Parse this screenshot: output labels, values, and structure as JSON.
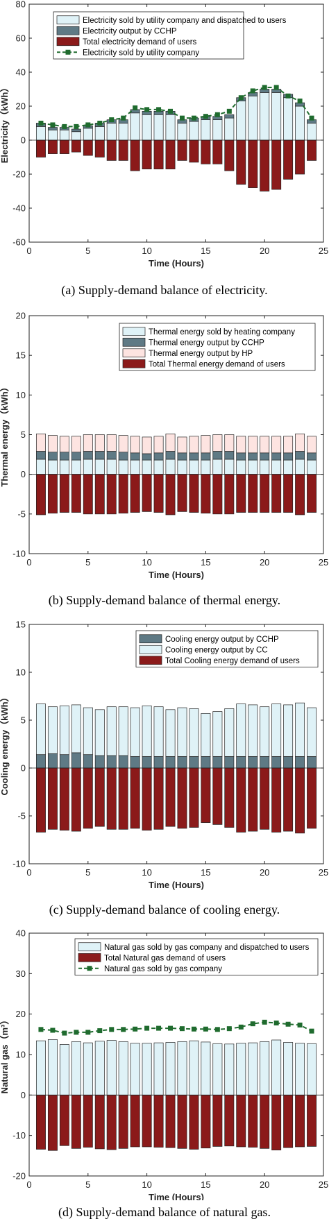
{
  "figures": [
    {
      "caption": "(a) Supply-demand balance of electricity.",
      "chart_data": {
        "type": "bar",
        "xlabel": "Time (Hours)",
        "ylabel": "Electricity（kWh）",
        "xlim": [
          0,
          25
        ],
        "ylim": [
          -60,
          80
        ],
        "xticks": [
          "0",
          "5",
          "10",
          "15",
          "20",
          "25"
        ],
        "yticks": [
          "80",
          "60",
          "40",
          "20",
          "0",
          "-20",
          "-40",
          "-60"
        ],
        "grid": false,
        "legend_position": "top-left",
        "x": [
          1,
          2,
          3,
          4,
          5,
          6,
          7,
          8,
          9,
          10,
          11,
          12,
          13,
          14,
          15,
          16,
          17,
          18,
          19,
          20,
          21,
          22,
          23,
          24
        ],
        "series": [
          {
            "name": "Electricity sold by utility company and dispatched to users",
            "kind": "bar-pos",
            "color": "#dff2f7",
            "values": [
              8,
              6,
              6,
              5,
              7,
              8,
              10,
              10,
              16,
              15,
              15,
              15,
              10,
              11,
              12,
              12,
              13,
              23,
              26,
              28,
              28,
              25,
              20,
              10
            ]
          },
          {
            "name": "Electricity output by CCHP",
            "kind": "bar-pos",
            "color": "#5f7a85",
            "values": [
              2,
              1.5,
              1.5,
              1.5,
              1.5,
              2,
              2,
              2,
              2,
              2,
              2,
              2,
              2,
              2,
              2,
              2,
              2,
              2,
              2,
              2,
              2,
              2,
              2,
              2
            ]
          },
          {
            "name": "Total electricity demand of users",
            "kind": "bar-neg",
            "color": "#8b1a1a",
            "values": [
              -10,
              -8,
              -8,
              -7,
              -9,
              -10,
              -12,
              -12,
              -18,
              -17,
              -17,
              -17,
              -12,
              -13,
              -14,
              -14,
              -18,
              -26,
              -28,
              -30,
              -29,
              -23,
              -20,
              -12
            ]
          },
          {
            "name": "Electricity sold by utility company",
            "kind": "line",
            "color": "#1f6b2e",
            "values": [
              10,
              9,
              8,
              8,
              9,
              10,
              12,
              13,
              19,
              18,
              18,
              17,
              13,
              13,
              14,
              15,
              17,
              25,
              29,
              31,
              31,
              26,
              23,
              13
            ]
          }
        ]
      }
    },
    {
      "caption": "(b) Supply-demand balance of thermal energy.",
      "chart_data": {
        "type": "bar",
        "xlabel": "Time (Hours)",
        "ylabel": "Thermal energy（kWh）",
        "xlim": [
          0,
          25
        ],
        "ylim": [
          -10,
          20
        ],
        "xticks": [
          "0",
          "5",
          "10",
          "15",
          "20",
          "25"
        ],
        "yticks": [
          "20",
          "15",
          "10",
          "5",
          "0",
          "-5",
          "-10"
        ],
        "grid": false,
        "legend_position": "top-right",
        "x": [
          1,
          2,
          3,
          4,
          5,
          6,
          7,
          8,
          9,
          10,
          11,
          12,
          13,
          14,
          15,
          16,
          17,
          18,
          19,
          20,
          21,
          22,
          23,
          24
        ],
        "series": [
          {
            "name": "Thermal energy sold by heating company",
            "kind": "bar-pos",
            "color": "#dff2f7",
            "values": [
              1.9,
              1.8,
              1.8,
              1.8,
              1.9,
              1.9,
              1.9,
              1.8,
              1.8,
              1.8,
              1.8,
              1.9,
              1.8,
              1.8,
              1.8,
              1.9,
              1.9,
              1.8,
              1.8,
              1.8,
              1.8,
              1.8,
              1.9,
              1.8
            ]
          },
          {
            "name": "Thermal energy output by CCHP",
            "kind": "bar-pos",
            "color": "#5f7a85",
            "values": [
              1.0,
              1.0,
              1.0,
              1.0,
              1.0,
              1.0,
              1.0,
              1.0,
              0.9,
              0.8,
              0.9,
              1.0,
              0.9,
              0.9,
              0.9,
              1.0,
              1.0,
              0.9,
              0.9,
              0.9,
              0.9,
              0.9,
              1.0,
              0.9
            ]
          },
          {
            "name": "Thermal energy output by HP",
            "kind": "bar-pos",
            "color": "#fde4e1",
            "values": [
              2.2,
              2.1,
              2.0,
              2.0,
              2.1,
              2.1,
              2.1,
              2.1,
              2.1,
              2.1,
              2.1,
              2.2,
              2.0,
              2.1,
              2.2,
              2.1,
              2.1,
              2.1,
              2.1,
              2.1,
              2.1,
              2.1,
              2.2,
              2.1
            ]
          },
          {
            "name": "Total Thermal energy demand of users",
            "kind": "bar-neg",
            "color": "#8b1a1a",
            "values": [
              -5.1,
              -4.9,
              -4.8,
              -4.8,
              -5.0,
              -5.0,
              -5.0,
              -4.9,
              -4.8,
              -4.7,
              -4.8,
              -5.1,
              -4.7,
              -4.8,
              -4.9,
              -5.0,
              -5.0,
              -4.8,
              -4.8,
              -4.8,
              -4.8,
              -4.8,
              -5.1,
              -4.8
            ]
          }
        ]
      }
    },
    {
      "caption": "(c) Supply-demand balance of cooling energy.",
      "chart_data": {
        "type": "bar",
        "xlabel": "Time (Hours)",
        "ylabel": "Cooling energy（kWh）",
        "xlim": [
          0,
          25
        ],
        "ylim": [
          -10,
          15
        ],
        "xticks": [
          "0",
          "5",
          "10",
          "15",
          "20",
          "25"
        ],
        "yticks": [
          "15",
          "10",
          "5",
          "0",
          "-5",
          "-10"
        ],
        "grid": false,
        "legend_position": "top-right",
        "x": [
          1,
          2,
          3,
          4,
          5,
          6,
          7,
          8,
          9,
          10,
          11,
          12,
          13,
          14,
          15,
          16,
          17,
          18,
          19,
          20,
          21,
          22,
          23,
          24
        ],
        "series": [
          {
            "name": "Cooling energy output by CCHP",
            "kind": "bar-pos",
            "color": "#5f7a85",
            "values": [
              1.4,
              1.5,
              1.4,
              1.6,
              1.4,
              1.3,
              1.3,
              1.3,
              1.2,
              1.2,
              1.2,
              1.2,
              1.2,
              1.2,
              1.2,
              1.2,
              1.2,
              1.2,
              1.2,
              1.2,
              1.2,
              1.2,
              1.2,
              1.2
            ]
          },
          {
            "name": "Cooling energy output by CC",
            "kind": "bar-pos",
            "color": "#dff2f7",
            "values": [
              5.3,
              4.9,
              5.1,
              5.0,
              4.9,
              4.8,
              5.1,
              5.1,
              5.1,
              5.3,
              5.2,
              4.9,
              5.1,
              5.0,
              4.5,
              4.7,
              5.0,
              5.5,
              5.4,
              5.2,
              5.5,
              5.4,
              5.6,
              5.1
            ]
          },
          {
            "name": "Total Cooling energy demand of users",
            "kind": "bar-neg",
            "color": "#8b1a1a",
            "values": [
              -6.7,
              -6.4,
              -6.5,
              -6.6,
              -6.3,
              -6.1,
              -6.4,
              -6.4,
              -6.3,
              -6.5,
              -6.4,
              -6.1,
              -6.3,
              -6.2,
              -5.7,
              -5.9,
              -6.2,
              -6.7,
              -6.6,
              -6.4,
              -6.7,
              -6.6,
              -6.8,
              -6.3
            ]
          }
        ]
      }
    },
    {
      "caption": "(d) Supply-demand balance of natural gas.",
      "chart_data": {
        "type": "bar",
        "xlabel": "Time (Hours)",
        "ylabel": "Natural gas（m³）",
        "xlim": [
          0,
          25
        ],
        "ylim": [
          -20,
          40
        ],
        "xticks": [
          "0",
          "5",
          "10",
          "15",
          "20",
          "25"
        ],
        "yticks": [
          "40",
          "30",
          "20",
          "10",
          "0",
          "-10",
          "-20"
        ],
        "grid": false,
        "legend_position": "top-center",
        "x": [
          1,
          2,
          3,
          4,
          5,
          6,
          7,
          8,
          9,
          10,
          11,
          12,
          13,
          14,
          15,
          16,
          17,
          18,
          19,
          20,
          21,
          22,
          23,
          24
        ],
        "series": [
          {
            "name": "Natural gas sold by gas company and dispatched to users",
            "kind": "bar-pos",
            "color": "#dff2f7",
            "values": [
              13.4,
              13.7,
              12.5,
              13.2,
              12.9,
              13.3,
              13.5,
              13.2,
              12.8,
              12.8,
              12.9,
              13.0,
              13.2,
              13.4,
              13.1,
              12.7,
              12.6,
              12.8,
              12.9,
              13.2,
              13.6,
              13.0,
              12.8,
              12.7
            ]
          },
          {
            "name": "Total Natural gas demand of users",
            "kind": "bar-neg",
            "color": "#8b1a1a",
            "values": [
              -13.4,
              -13.7,
              -12.5,
              -13.2,
              -12.9,
              -13.3,
              -13.5,
              -13.2,
              -12.8,
              -12.8,
              -12.9,
              -13.0,
              -13.2,
              -13.4,
              -13.1,
              -12.7,
              -12.6,
              -12.8,
              -12.9,
              -13.2,
              -13.6,
              -13.0,
              -12.8,
              -12.7
            ]
          },
          {
            "name": "Natural gas sold by gas company",
            "kind": "line",
            "color": "#1f6b2e",
            "values": [
              16.2,
              16.0,
              15.3,
              15.5,
              15.5,
              15.9,
              16.2,
              16.2,
              16.3,
              16.5,
              16.5,
              16.5,
              16.4,
              16.3,
              16.3,
              16.2,
              16.4,
              16.8,
              17.6,
              18.0,
              17.8,
              17.5,
              17.3,
              15.8
            ]
          }
        ]
      }
    }
  ]
}
